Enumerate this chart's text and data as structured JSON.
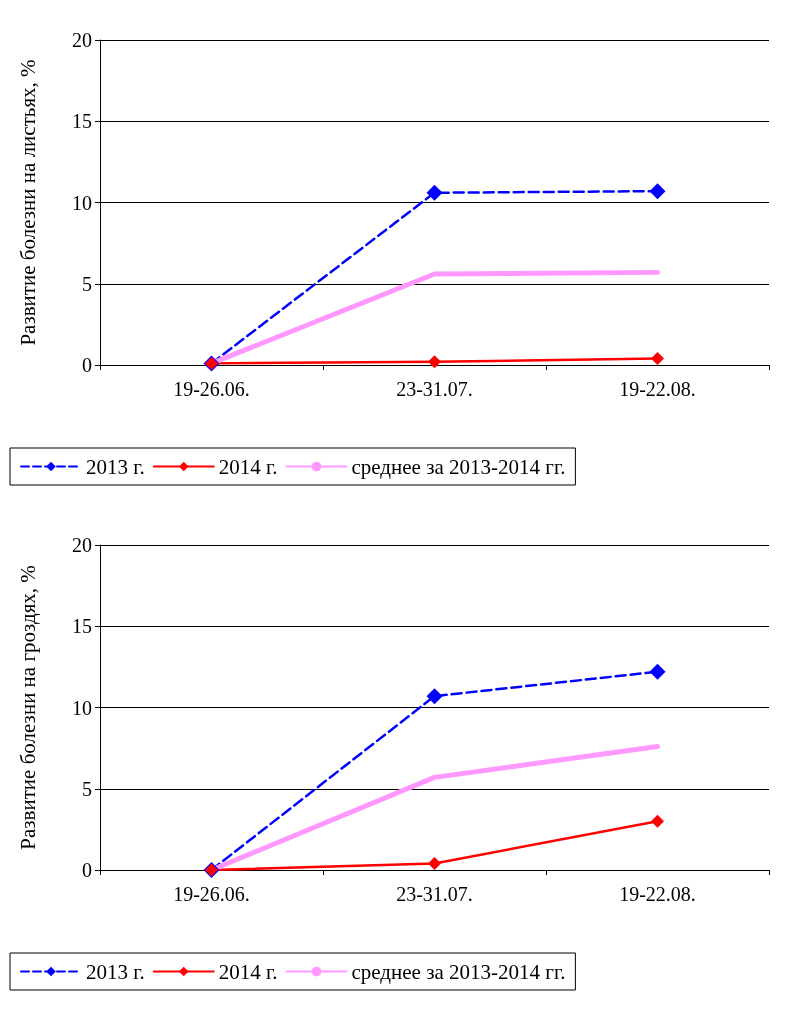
{
  "chart_data": [
    {
      "type": "line",
      "ylabel": "Развитие болезни на листьях, %",
      "categories": [
        "19-26.06.",
        "23-31.07.",
        "19-22.08."
      ],
      "ylim": [
        0,
        20
      ],
      "yticks": [
        0,
        5,
        10,
        15,
        20
      ],
      "grid": "y",
      "legend": "bottom",
      "series": [
        {
          "name": "2013 г.",
          "color": "#0000ff",
          "values": [
            0.1,
            10.6,
            10.7
          ],
          "marker": "diamond",
          "line_style": "dashed"
        },
        {
          "name": "2014 г.",
          "color": "#ff0000",
          "values": [
            0.1,
            0.2,
            0.4
          ],
          "marker": "diamond",
          "line_style": "solid"
        },
        {
          "name": "среднее за 2013-2014 гг.",
          "color": "#ff99ff",
          "values": [
            0.1,
            5.6,
            5.7
          ],
          "marker": "none",
          "line_style": "solid"
        }
      ]
    },
    {
      "type": "line",
      "ylabel": "Развитие болезни на гроздях, %",
      "categories": [
        "19-26.06.",
        "23-31.07.",
        "19-22.08."
      ],
      "ylim": [
        0,
        20
      ],
      "yticks": [
        0,
        5,
        10,
        15,
        20
      ],
      "grid": "y",
      "legend": "bottom",
      "series": [
        {
          "name": "2013 г.",
          "color": "#0000ff",
          "values": [
            0,
            10.7,
            12.2
          ],
          "marker": "diamond",
          "line_style": "dashed"
        },
        {
          "name": "2014 г.",
          "color": "#ff0000",
          "values": [
            0,
            0.4,
            3.0
          ],
          "marker": "diamond",
          "line_style": "solid"
        },
        {
          "name": "среднее за 2013-2014 гг.",
          "color": "#ff99ff",
          "values": [
            0,
            5.7,
            7.6
          ],
          "marker": "none",
          "line_style": "solid"
        }
      ]
    }
  ]
}
